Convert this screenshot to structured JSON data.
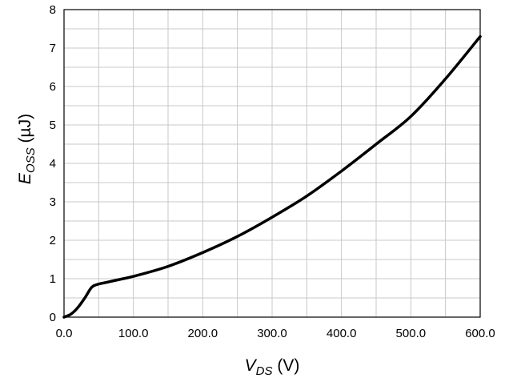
{
  "chart_data": {
    "type": "line",
    "title": "",
    "xlabel": {
      "main": "V",
      "sub": "DS",
      "unit": " (V)"
    },
    "ylabel": {
      "main": "E",
      "sub": "OSS",
      "unit": " (µJ)"
    },
    "xlim": [
      0,
      600
    ],
    "ylim": [
      0,
      8
    ],
    "x_tick_labels": [
      "0.0",
      "100.0",
      "200.0",
      "300.0",
      "400.0",
      "500.0",
      "600.0"
    ],
    "y_tick_labels": [
      "0",
      "1",
      "2",
      "3",
      "4",
      "5",
      "6",
      "7",
      "8"
    ],
    "grid": true,
    "legend": "none",
    "series": [
      {
        "color": "#000000",
        "x": [
          0,
          10,
          20,
          30,
          40,
          50,
          60,
          80,
          100,
          150,
          200,
          250,
          300,
          350,
          400,
          450,
          500,
          550,
          600
        ],
        "y": [
          0,
          0.08,
          0.25,
          0.5,
          0.78,
          0.86,
          0.9,
          0.98,
          1.06,
          1.32,
          1.68,
          2.1,
          2.6,
          3.15,
          3.8,
          4.5,
          5.22,
          6.2,
          7.3
        ]
      }
    ]
  },
  "colors": {
    "grid": "#c8c8c8",
    "axis": "#000000",
    "line": "#000000"
  }
}
